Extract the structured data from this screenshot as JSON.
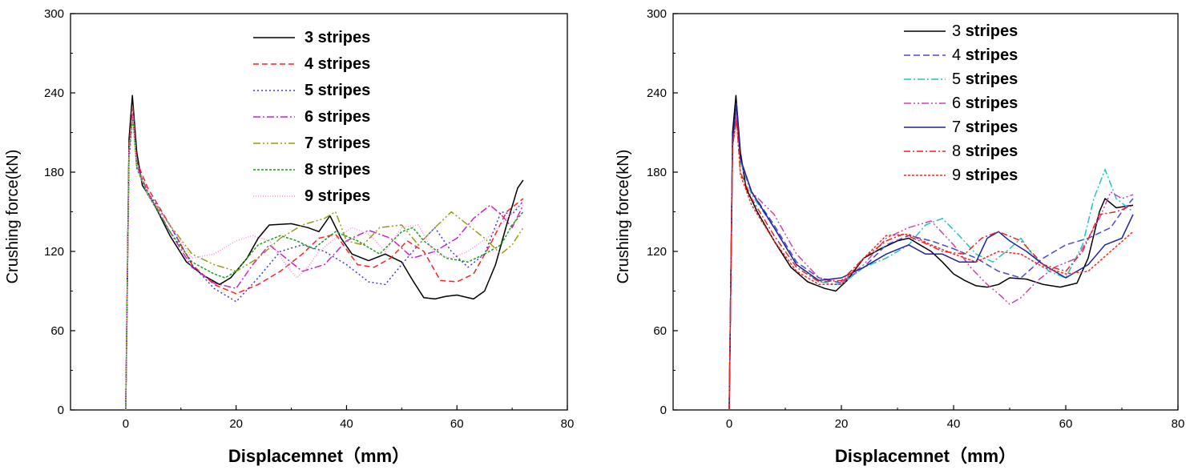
{
  "chart_data": [
    {
      "type": "line",
      "title": "",
      "xlabel": "Displacemnet（mm）",
      "ylabel": "Crushing force(kN)",
      "xlim": [
        -10,
        80
      ],
      "ylim": [
        0,
        300
      ],
      "xticks": [
        "0",
        "20",
        "40",
        "60",
        "80"
      ],
      "yticks": [
        "0",
        "60",
        "120",
        "180",
        "240",
        "300"
      ],
      "legend_position": "top-center",
      "legend_number_bold": true,
      "series": [
        {
          "name": "3 stripes",
          "color": "#000000",
          "dash": "",
          "x": [
            0,
            0.6,
            1.2,
            2,
            3,
            5,
            8,
            11,
            14,
            17,
            19,
            22,
            24,
            26,
            30,
            33,
            35,
            37,
            39,
            41,
            44,
            47,
            50,
            52,
            54,
            56,
            58,
            60,
            63,
            65,
            67,
            69,
            71,
            72
          ],
          "y": [
            0,
            205,
            238,
            195,
            170,
            157,
            132,
            112,
            102,
            95,
            100,
            115,
            130,
            140,
            141,
            138,
            135,
            147,
            130,
            118,
            113,
            118,
            112,
            98,
            85,
            84,
            86,
            87,
            84,
            90,
            110,
            140,
            168,
            174
          ]
        },
        {
          "name": "4 stripes",
          "color": "#ff2020",
          "dash": "7,4",
          "x": [
            0,
            0.6,
            1.3,
            2,
            4,
            8,
            12,
            16,
            20,
            24,
            28,
            32,
            35,
            38,
            42,
            45,
            48,
            51,
            54,
            57,
            60,
            63,
            66,
            69,
            72
          ],
          "y": [
            0,
            200,
            228,
            188,
            168,
            140,
            110,
            95,
            88,
            95,
            105,
            118,
            130,
            133,
            110,
            108,
            115,
            128,
            120,
            98,
            97,
            103,
            125,
            150,
            160
          ]
        },
        {
          "name": "5 stripes",
          "color": "#3a3ad0",
          "dash": "2,3",
          "x": [
            0,
            0.6,
            1.3,
            2,
            4,
            8,
            12,
            16,
            20,
            24,
            28,
            32,
            36,
            40,
            44,
            47,
            50,
            53,
            56,
            59,
            62,
            65,
            68,
            70,
            72
          ],
          "y": [
            0,
            190,
            222,
            185,
            165,
            140,
            110,
            92,
            82,
            100,
            120,
            125,
            120,
            110,
            97,
            95,
            110,
            125,
            138,
            120,
            108,
            118,
            150,
            148,
            158
          ]
        },
        {
          "name": "6 stripes",
          "color": "#cc22cc",
          "dash": "9,3,2,3",
          "x": [
            0,
            0.6,
            1.3,
            2,
            4,
            8,
            12,
            16,
            20,
            23,
            26,
            29,
            32,
            36,
            40,
            44,
            48,
            52,
            56,
            60,
            63,
            66,
            68,
            70,
            72
          ],
          "y": [
            0,
            195,
            225,
            185,
            165,
            135,
            108,
            96,
            92,
            110,
            125,
            115,
            105,
            110,
            128,
            136,
            130,
            115,
            120,
            130,
            145,
            155,
            148,
            138,
            155
          ]
        },
        {
          "name": "7 stripes",
          "color": "#9a9a10",
          "dash": "9,3,2,3,2,3",
          "x": [
            0,
            0.6,
            1.3,
            2,
            4,
            8,
            12,
            16,
            20,
            24,
            28,
            32,
            36,
            38,
            40,
            43,
            46,
            50,
            53,
            56,
            59,
            62,
            65,
            68,
            70,
            72
          ],
          "y": [
            0,
            195,
            222,
            183,
            163,
            140,
            118,
            110,
            105,
            115,
            130,
            140,
            145,
            150,
            128,
            125,
            138,
            140,
            125,
            138,
            150,
            140,
            130,
            118,
            125,
            138
          ]
        },
        {
          "name": "8 stripes",
          "color": "#1a9a1a",
          "dash": "3,2",
          "x": [
            0,
            0.6,
            1.3,
            2,
            4,
            8,
            12,
            16,
            18,
            20,
            24,
            28,
            31,
            34,
            38,
            42,
            46,
            50,
            52,
            54,
            58,
            62,
            65,
            68,
            70,
            72
          ],
          "y": [
            0,
            195,
            222,
            183,
            163,
            135,
            112,
            103,
            100,
            105,
            125,
            132,
            128,
            122,
            135,
            128,
            118,
            135,
            138,
            128,
            115,
            112,
            118,
            125,
            140,
            150
          ]
        },
        {
          "name": "9 stripes",
          "color": "#ff88dd",
          "dash": "1,2",
          "x": [
            0,
            0.6,
            1.3,
            2,
            4,
            8,
            12,
            16,
            20,
            23,
            26,
            29,
            31,
            33,
            35,
            38,
            41,
            44,
            47,
            50,
            53,
            56,
            59,
            62,
            66,
            69,
            72
          ],
          "y": [
            0,
            195,
            222,
            183,
            163,
            140,
            115,
            118,
            128,
            132,
            128,
            110,
            100,
            108,
            120,
            130,
            138,
            133,
            120,
            138,
            140,
            118,
            115,
            120,
            132,
            145,
            158
          ]
        }
      ]
    },
    {
      "type": "line",
      "title": "",
      "xlabel": "Displacemnet（mm）",
      "ylabel": "Crushing force(kN)",
      "xlim": [
        -10,
        80
      ],
      "ylim": [
        0,
        300
      ],
      "xticks": [
        "0",
        "20",
        "40",
        "60",
        "80"
      ],
      "yticks": [
        "0",
        "60",
        "120",
        "180",
        "240",
        "300"
      ],
      "legend_position": "top-center",
      "legend_number_bold": false,
      "series": [
        {
          "name": "3 stripes",
          "color": "#000000",
          "dash": "",
          "x": [
            0,
            0.6,
            1.2,
            2,
            3,
            5,
            8,
            11,
            14,
            17,
            19,
            21,
            24,
            27,
            30,
            32,
            34,
            36,
            38,
            40,
            42,
            44,
            46,
            48,
            50,
            53,
            56,
            59,
            62,
            64,
            66,
            67,
            69,
            72
          ],
          "y": [
            0,
            210,
            238,
            195,
            168,
            150,
            128,
            108,
            97,
            92,
            90,
            98,
            115,
            122,
            128,
            130,
            125,
            120,
            112,
            103,
            98,
            94,
            93,
            95,
            100,
            99,
            95,
            93,
            96,
            115,
            150,
            160,
            153,
            155
          ]
        },
        {
          "name": "4 stripes",
          "color": "#4a4ad0",
          "dash": "8,4",
          "x": [
            0,
            0.6,
            1.3,
            2,
            4,
            8,
            12,
            16,
            20,
            24,
            28,
            32,
            36,
            40,
            44,
            48,
            52,
            56,
            60,
            64,
            68,
            70,
            72
          ],
          "y": [
            0,
            205,
            230,
            190,
            165,
            140,
            112,
            100,
            96,
            108,
            125,
            132,
            128,
            122,
            115,
            105,
            100,
            115,
            125,
            130,
            138,
            150,
            160
          ]
        },
        {
          "name": "5 stripes",
          "color": "#22c4c4",
          "dash": "9,3,2,3",
          "x": [
            0,
            0.6,
            1.3,
            2,
            4,
            8,
            12,
            16,
            20,
            24,
            28,
            32,
            35,
            38,
            41,
            44,
            47,
            50,
            52,
            54,
            57,
            60,
            63,
            65,
            67,
            69,
            72
          ],
          "y": [
            0,
            205,
            228,
            188,
            163,
            138,
            110,
            97,
            95,
            108,
            115,
            125,
            140,
            145,
            132,
            118,
            112,
            122,
            130,
            118,
            105,
            100,
            125,
            160,
            182,
            160,
            150
          ]
        },
        {
          "name": "6 stripes",
          "color": "#cc44aa",
          "dash": "9,3,2,3,2,3",
          "x": [
            0,
            0.6,
            1.3,
            2,
            4,
            8,
            12,
            16,
            20,
            24,
            28,
            32,
            36,
            40,
            43,
            46,
            48,
            50,
            52,
            55,
            58,
            62,
            66,
            68,
            70,
            72
          ],
          "y": [
            0,
            200,
            225,
            190,
            165,
            148,
            118,
            100,
            97,
            110,
            130,
            138,
            143,
            125,
            108,
            95,
            88,
            80,
            85,
            98,
            108,
            115,
            145,
            165,
            160,
            163
          ]
        },
        {
          "name": "7 stripes",
          "color": "#22229a",
          "dash": "",
          "x": [
            0,
            0.6,
            1.3,
            2,
            4,
            8,
            12,
            16,
            20,
            24,
            28,
            32,
            35,
            38,
            41,
            44,
            46,
            48,
            50,
            53,
            56,
            60,
            64,
            67,
            70,
            72
          ],
          "y": [
            0,
            205,
            232,
            190,
            165,
            138,
            110,
            98,
            100,
            108,
            118,
            125,
            118,
            118,
            112,
            112,
            130,
            135,
            128,
            120,
            110,
            100,
            110,
            125,
            130,
            148
          ]
        },
        {
          "name": "8 stripes",
          "color": "#ee2222",
          "dash": "8,3,2,3",
          "x": [
            0,
            0.6,
            1.3,
            2,
            4,
            8,
            12,
            16,
            20,
            24,
            28,
            31,
            34,
            38,
            42,
            45,
            48,
            52,
            56,
            60,
            63,
            66,
            69,
            72
          ],
          "y": [
            0,
            200,
            220,
            180,
            160,
            132,
            108,
            97,
            98,
            115,
            128,
            133,
            128,
            120,
            118,
            130,
            135,
            128,
            110,
            105,
            120,
            148,
            150,
            155
          ]
        },
        {
          "name": "9 stripes",
          "color": "#ff2222",
          "dash": "3,2",
          "x": [
            0,
            0.6,
            1.3,
            2,
            4,
            8,
            12,
            16,
            20,
            24,
            28,
            32,
            36,
            40,
            44,
            48,
            52,
            56,
            60,
            64,
            68,
            72
          ],
          "y": [
            0,
            200,
            220,
            178,
            155,
            128,
            105,
            95,
            95,
            115,
            132,
            133,
            125,
            118,
            112,
            120,
            118,
            108,
            103,
            105,
            120,
            135
          ]
        }
      ]
    }
  ]
}
